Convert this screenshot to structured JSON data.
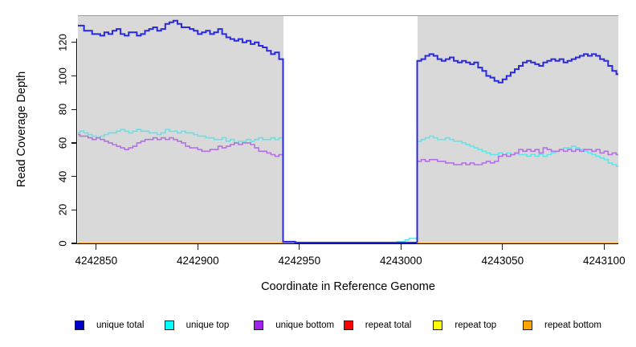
{
  "chart_data": {
    "type": "line",
    "subtype": "step-coverage",
    "title": "",
    "xlabel": "Coordinate in Reference Genome",
    "ylabel": "Read Coverage Depth",
    "xlim": [
      4242841,
      4243107
    ],
    "ylim": [
      0,
      136.2
    ],
    "x_ticks": [
      4242850,
      4242900,
      4242950,
      4243000,
      4243050,
      4243100
    ],
    "y_ticks": [
      0,
      20,
      40,
      60,
      80,
      100,
      120
    ],
    "grid": "off",
    "legend_position": "bottom",
    "panel_bg": "#d9d9d9",
    "panel_border": "#9a9a9a",
    "gap_region": {
      "from": 4242942,
      "to": 4243008,
      "color": "#ffffff"
    },
    "x_start": 4242840,
    "x_step": 2,
    "n_points": 134,
    "draw_order": [
      4,
      3,
      1,
      2,
      0,
      5
    ],
    "series": [
      {
        "name": "unique total",
        "color": "#2929e0",
        "legend_color": "#0000cd",
        "width": 2,
        "values": [
          130,
          130,
          127,
          127,
          125,
          125,
          124,
          126,
          125,
          127,
          128,
          125,
          124,
          126,
          126,
          124,
          125,
          127,
          128,
          129,
          127,
          128,
          131,
          132,
          133,
          131,
          129,
          129,
          128,
          127,
          125,
          126,
          127,
          125,
          126,
          128,
          125,
          123,
          122,
          121,
          122,
          120,
          121,
          119,
          120,
          118,
          117,
          115,
          113,
          114,
          110,
          1,
          1,
          1,
          0.5,
          0.5,
          0.5,
          0.5,
          0.5,
          0.5,
          0.5,
          0.5,
          0.5,
          0.5,
          0.5,
          0.5,
          0.5,
          0.5,
          0.5,
          0.5,
          0.5,
          0.5,
          0.5,
          0.5,
          0.5,
          0.5,
          0.5,
          0.5,
          0.5,
          0.5,
          0.5,
          0.5,
          0.5,
          0.5,
          109,
          110,
          112,
          113,
          112,
          110,
          109,
          110,
          111,
          109,
          108,
          109,
          108,
          107,
          108,
          105,
          103,
          100,
          99,
          97,
          96,
          98,
          100,
          102,
          104,
          106,
          108,
          109,
          108,
          107,
          106,
          108,
          109,
          110,
          109,
          110,
          108,
          109,
          110,
          111,
          112,
          113,
          112,
          113,
          112,
          110,
          109,
          106,
          103,
          101
        ]
      },
      {
        "name": "unique top",
        "color": "#63e3ea",
        "legend_color": "#00ffff",
        "width": 1.6,
        "values": [
          66,
          67,
          66,
          65,
          64,
          63,
          64,
          65,
          66,
          66,
          67,
          68,
          67,
          66,
          67,
          68,
          67,
          67,
          66,
          66,
          65,
          66,
          68,
          67,
          67,
          66,
          67,
          66,
          66,
          65,
          64,
          64,
          63,
          63,
          62,
          62,
          63,
          61,
          62,
          60,
          61,
          61,
          62,
          61,
          62,
          63,
          62,
          62,
          63,
          62,
          63,
          0,
          0,
          0,
          0,
          0,
          0,
          0,
          0,
          0,
          0,
          0,
          0,
          0,
          0,
          0,
          0,
          0,
          0,
          0,
          0,
          0,
          0,
          0,
          0,
          0,
          0,
          0,
          0,
          1,
          1,
          2,
          3,
          3,
          61,
          62,
          63,
          64,
          63,
          62,
          62,
          63,
          62,
          61,
          61,
          60,
          59,
          58,
          57,
          56,
          55,
          54,
          53,
          53,
          54,
          53,
          54,
          53,
          54,
          53,
          53,
          52,
          53,
          52,
          53,
          52,
          53,
          54,
          55,
          56,
          57,
          57,
          58,
          57,
          56,
          55,
          54,
          53,
          52,
          51,
          50,
          48,
          47,
          46
        ]
      },
      {
        "name": "unique bottom",
        "color": "#b272e2",
        "legend_color": "#a020f0",
        "width": 1.6,
        "values": [
          65,
          64,
          64,
          63,
          62,
          63,
          62,
          61,
          60,
          59,
          58,
          57,
          56,
          57,
          58,
          60,
          61,
          62,
          62,
          63,
          62,
          63,
          62,
          63,
          62,
          61,
          60,
          58,
          57,
          57,
          56,
          55,
          55,
          56,
          56,
          58,
          57,
          58,
          59,
          60,
          59,
          60,
          60,
          59,
          57,
          55,
          55,
          54,
          53,
          52,
          53,
          0.5,
          0.5,
          0.5,
          0.5,
          0.5,
          0.5,
          0.5,
          0.5,
          0.5,
          0.5,
          0.5,
          0.5,
          0.5,
          0.5,
          0.5,
          0.5,
          0.5,
          0.5,
          0.5,
          0.5,
          0.5,
          0.5,
          0.5,
          0.5,
          0.5,
          0.5,
          0.5,
          0.5,
          0.5,
          0.5,
          0.5,
          0.5,
          0.5,
          49,
          50,
          49,
          50,
          50,
          49,
          49,
          48,
          48,
          47,
          47,
          48,
          47,
          48,
          47,
          47,
          48,
          49,
          48,
          49,
          52,
          53,
          52,
          53,
          54,
          56,
          55,
          56,
          55,
          56,
          54,
          57,
          56,
          55,
          55,
          56,
          55,
          56,
          55,
          56,
          55,
          56,
          56,
          55,
          56,
          54,
          55,
          53,
          54,
          53
        ]
      },
      {
        "name": "repeat total",
        "color": "#ee4466",
        "legend_color": "#ff0000",
        "width": 1.5,
        "segments": [
          {
            "from": 4242841,
            "to": 4243107,
            "value": 0
          }
        ]
      },
      {
        "name": "repeat top",
        "color": "#ffff00",
        "legend_color": "#ffff00",
        "width": 1.2,
        "segments": [
          {
            "from": 4242841,
            "to": 4243107,
            "value": 0
          }
        ]
      },
      {
        "name": "repeat bottom",
        "color": "#ffa40b",
        "legend_color": "#ffa500",
        "width": 2,
        "segments": [
          {
            "from": 4242841,
            "to": 4242942,
            "value": 0
          },
          {
            "from": 4243008,
            "to": 4243107,
            "value": 0
          }
        ]
      }
    ],
    "legend": [
      "unique total",
      "unique top",
      "unique bottom",
      "repeat total",
      "repeat top",
      "repeat bottom"
    ]
  }
}
